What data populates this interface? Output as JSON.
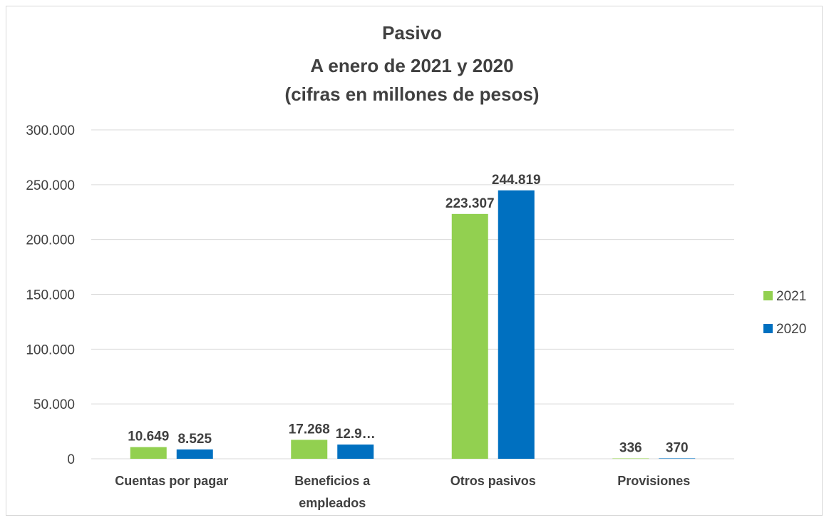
{
  "chart_data": {
    "type": "bar",
    "title_lines": [
      "Pasivo",
      "A enero de 2021 y 2020",
      "(cifras en millones de pesos)"
    ],
    "categories": [
      [
        "Cuentas por pagar"
      ],
      [
        "Beneficios a",
        "empleados"
      ],
      [
        "Otros pasivos"
      ],
      [
        "Provisiones"
      ]
    ],
    "series": [
      {
        "name": "2021",
        "values": [
          10649,
          17268,
          223307,
          336
        ],
        "labels": [
          "10.649",
          "17.268",
          "223.307",
          "336"
        ],
        "color": "#92d050"
      },
      {
        "name": "2020",
        "values": [
          8525,
          12965,
          244819,
          370
        ],
        "labels": [
          "8.525",
          "12.9…",
          "244.819",
          "370"
        ],
        "color": "#0070c0"
      }
    ],
    "ylim": [
      0,
      300000
    ],
    "yticks": [
      0,
      50000,
      100000,
      150000,
      200000,
      250000,
      300000
    ],
    "ytick_labels": [
      "0",
      "50.000",
      "100.000",
      "150.000",
      "200.000",
      "250.000",
      "300.000"
    ],
    "grid": true,
    "legend_position": "right",
    "gridline_color": "#d9d9d9",
    "text_color": "#404040"
  }
}
